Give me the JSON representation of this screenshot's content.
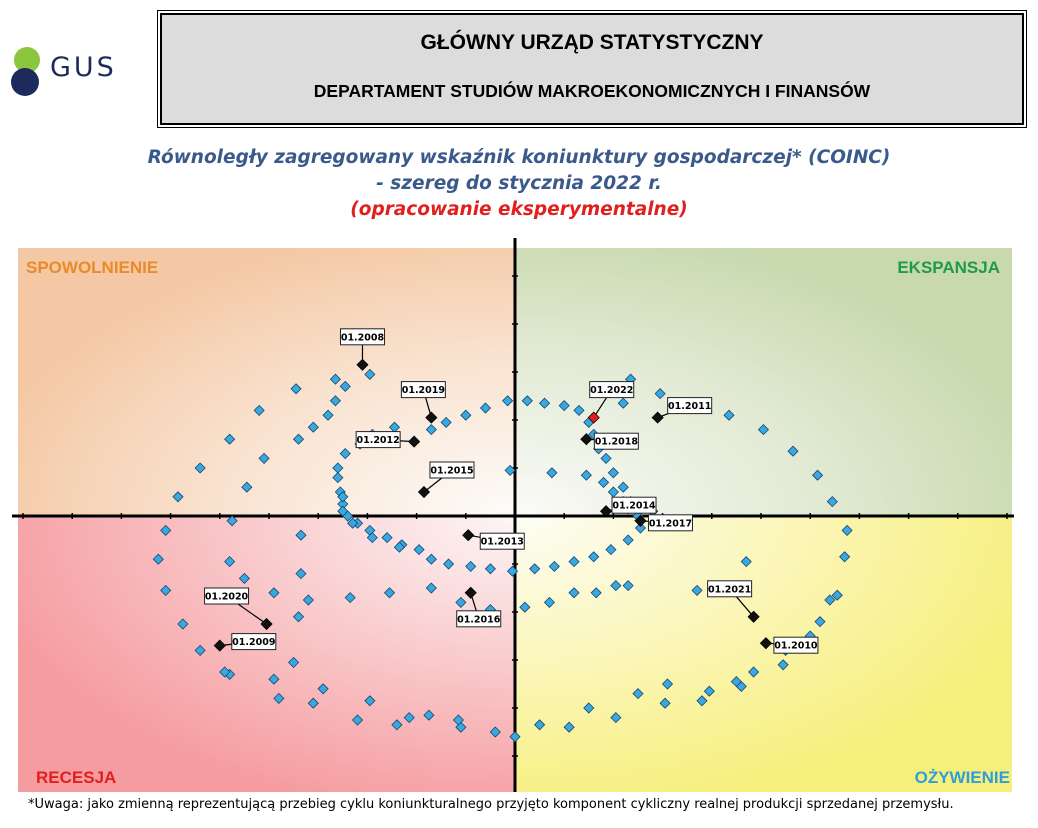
{
  "logo": {
    "text": "GUS"
  },
  "header": {
    "title": "GŁÓWNY URZĄD STATYSTYCZNY",
    "subtitle": "DEPARTAMENT STUDIÓW MAKROEKONOMICZNYCH I FINANSÓW"
  },
  "colors": {
    "title_blue": "#3b5a8c",
    "title_red": "#e0201f",
    "point_fill": "#39a8e0",
    "marker_black": "#111111",
    "marker_red": "#e0201f",
    "q_spowolnienie": "#e98a2b",
    "q_ekspansja": "#1f9a4c",
    "q_recesja": "#e0201f",
    "q_ozywienie": "#2e9fd8"
  },
  "chart_data": {
    "type": "scatter",
    "title": "Równoległy zagregowany wskaźnik koniunktury gospodarczej* (COINC)",
    "subtitle": "- szereg do stycznia 2022 r.",
    "note": "(opracowanie eksperymentalne)",
    "xlim": [
      -20,
      20
    ],
    "ylim": [
      -11,
      11
    ],
    "quadrants": {
      "top_left": "SPOWOLNIENIE",
      "top_right": "EKSPANSJA",
      "bottom_left": "RECESJA",
      "bottom_right": "OŻYWIENIE"
    },
    "points": [
      [
        -5.9,
        5.9
      ],
      [
        -7.3,
        5.7
      ],
      [
        -8.9,
        5.3
      ],
      [
        -10.4,
        4.4
      ],
      [
        -11.6,
        3.2
      ],
      [
        -12.8,
        2.0
      ],
      [
        -13.7,
        0.8
      ],
      [
        -14.2,
        -0.6
      ],
      [
        -14.5,
        -1.8
      ],
      [
        -14.2,
        -3.1
      ],
      [
        -13.5,
        -4.5
      ],
      [
        -12.8,
        -5.6
      ],
      [
        -11.6,
        -6.6
      ],
      [
        -9.8,
        -6.8
      ],
      [
        -7.8,
        -7.2
      ],
      [
        -5.9,
        -7.7
      ],
      [
        -4.3,
        -8.4
      ],
      [
        -2.2,
        -8.8
      ],
      [
        0.0,
        -9.2
      ],
      [
        2.2,
        -8.8
      ],
      [
        4.1,
        -8.4
      ],
      [
        6.1,
        -7.8
      ],
      [
        7.9,
        -7.3
      ],
      [
        9.7,
        -6.5
      ],
      [
        11.0,
        -5.6
      ],
      [
        12.4,
        -4.4
      ],
      [
        13.1,
        -3.3
      ],
      [
        13.4,
        -1.7
      ],
      [
        13.5,
        -0.6
      ],
      [
        12.9,
        0.6
      ],
      [
        12.3,
        1.7
      ],
      [
        11.3,
        2.7
      ],
      [
        10.1,
        3.6
      ],
      [
        8.7,
        4.2
      ],
      [
        7.4,
        4.7
      ],
      [
        5.9,
        5.1
      ],
      [
        4.7,
        5.7
      ],
      [
        4.4,
        4.7
      ],
      [
        -3.4,
        -3.0
      ],
      [
        -5.1,
        -3.2
      ],
      [
        -6.7,
        -3.4
      ],
      [
        -8.4,
        -3.5
      ],
      [
        -9.8,
        -3.2
      ],
      [
        -11.0,
        -2.6
      ],
      [
        -11.6,
        -1.9
      ],
      [
        -11.5,
        -0.2
      ],
      [
        -10.9,
        1.2
      ],
      [
        -10.2,
        2.4
      ],
      [
        -8.8,
        3.2
      ],
      [
        -8.7,
        -0.8
      ],
      [
        -8.7,
        -2.4
      ],
      [
        -8.8,
        -4.2
      ],
      [
        -9.0,
        -6.1
      ],
      [
        -6.9,
        5.4
      ],
      [
        -7.3,
        4.8
      ],
      [
        -7.6,
        4.2
      ],
      [
        -8.2,
        3.7
      ],
      [
        -3.4,
        3.6
      ],
      [
        -2.8,
        3.9
      ],
      [
        -2.0,
        4.2
      ],
      [
        -1.2,
        4.5
      ],
      [
        -0.3,
        4.8
      ],
      [
        0.5,
        4.8
      ],
      [
        1.2,
        4.7
      ],
      [
        2.0,
        4.6
      ],
      [
        2.6,
        4.4
      ],
      [
        3.0,
        3.9
      ],
      [
        3.2,
        3.4
      ],
      [
        3.4,
        2.8
      ],
      [
        3.7,
        2.4
      ],
      [
        4.0,
        1.8
      ],
      [
        4.4,
        1.2
      ],
      [
        4.7,
        0.6
      ],
      [
        5.0,
        0.0
      ],
      [
        -4.9,
        3.7
      ],
      [
        -5.8,
        3.4
      ],
      [
        -6.3,
        3.0
      ],
      [
        -6.9,
        2.6
      ],
      [
        -7.2,
        2.0
      ],
      [
        -7.2,
        1.6
      ],
      [
        -7.1,
        1.0
      ],
      [
        -7.0,
        0.5
      ],
      [
        -6.8,
        0.0
      ],
      [
        -6.4,
        -0.3
      ],
      [
        -5.9,
        -0.6
      ],
      [
        -5.2,
        -0.9
      ],
      [
        -4.6,
        -1.2
      ],
      [
        -3.9,
        -1.4
      ],
      [
        -3.4,
        -1.8
      ],
      [
        -2.7,
        -2.0
      ],
      [
        -1.8,
        -2.1
      ],
      [
        -1.0,
        -2.2
      ],
      [
        -0.1,
        -2.3
      ],
      [
        0.8,
        -2.2
      ],
      [
        1.6,
        -2.1
      ],
      [
        2.4,
        -1.9
      ],
      [
        3.2,
        -1.7
      ],
      [
        3.9,
        -1.4
      ],
      [
        4.6,
        -1.0
      ],
      [
        5.1,
        -0.5
      ],
      [
        5.6,
        0.2
      ],
      [
        -0.2,
        1.9
      ],
      [
        1.5,
        1.8
      ],
      [
        2.9,
        1.7
      ],
      [
        3.6,
        1.4
      ],
      [
        4.0,
        1.0
      ],
      [
        4.4,
        0.6
      ],
      [
        4.6,
        0.3
      ],
      [
        9.4,
        -1.9
      ],
      [
        7.4,
        -3.1
      ],
      [
        4.6,
        -2.9
      ],
      [
        -11.8,
        -6.5
      ],
      [
        -9.6,
        -7.6
      ],
      [
        -8.2,
        -7.8
      ],
      [
        -6.4,
        -8.5
      ],
      [
        -4.8,
        -8.7
      ],
      [
        -3.5,
        -8.3
      ],
      [
        -2.3,
        -8.5
      ],
      [
        -0.8,
        -9.0
      ],
      [
        1.0,
        -8.7
      ],
      [
        3.0,
        -8.0
      ],
      [
        5.0,
        -7.4
      ],
      [
        7.6,
        -7.7
      ],
      [
        9.2,
        -7.1
      ],
      [
        10.9,
        -6.2
      ],
      [
        12.0,
        -5.0
      ],
      [
        12.8,
        -3.5
      ],
      [
        -7.0,
        0.8
      ],
      [
        -7.0,
        0.2
      ],
      [
        -6.6,
        -0.3
      ],
      [
        -5.8,
        -0.9
      ],
      [
        -4.7,
        -1.3
      ],
      [
        -2.2,
        -3.6
      ],
      [
        -1.0,
        -3.9
      ],
      [
        0.4,
        -3.8
      ],
      [
        1.4,
        -3.6
      ],
      [
        2.4,
        -3.2
      ],
      [
        3.3,
        -3.2
      ],
      [
        4.1,
        -2.9
      ],
      [
        6.2,
        -7.0
      ],
      [
        9.0,
        -6.9
      ]
    ],
    "key_points": [
      {
        "label": "01.2008",
        "x": -6.2,
        "y": 6.3,
        "marker": "black"
      },
      {
        "label": "01.2019",
        "x": -3.4,
        "y": 4.1,
        "marker": "black"
      },
      {
        "label": "01.2012",
        "x": -4.1,
        "y": 3.1,
        "marker": "black"
      },
      {
        "label": "01.2015",
        "x": -3.7,
        "y": 1.0,
        "marker": "black"
      },
      {
        "label": "01.2013",
        "x": -1.9,
        "y": -0.8,
        "marker": "black"
      },
      {
        "label": "01.2016",
        "x": -1.8,
        "y": -3.2,
        "marker": "black"
      },
      {
        "label": "01.2022",
        "x": 3.2,
        "y": 4.1,
        "marker": "red"
      },
      {
        "label": "01.2018",
        "x": 2.9,
        "y": 3.2,
        "marker": "black"
      },
      {
        "label": "01.2011",
        "x": 5.8,
        "y": 4.1,
        "marker": "black"
      },
      {
        "label": "01.2014",
        "x": 3.7,
        "y": 0.2,
        "marker": "black"
      },
      {
        "label": "01.2017",
        "x": 5.1,
        "y": -0.2,
        "marker": "black"
      },
      {
        "label": "01.2021",
        "x": 9.7,
        "y": -4.2,
        "marker": "black"
      },
      {
        "label": "01.2010",
        "x": 10.2,
        "y": -5.3,
        "marker": "black"
      },
      {
        "label": "01.2020",
        "x": -10.1,
        "y": -4.5,
        "marker": "black"
      },
      {
        "label": "01.2009",
        "x": -12.0,
        "y": -5.4,
        "marker": "black"
      }
    ]
  },
  "footnote": "*Uwaga: jako zmienną reprezentującą przebieg cyklu koniunkturalnego przyjęto komponent cykliczny realnej produkcji sprzedanej przemysłu."
}
